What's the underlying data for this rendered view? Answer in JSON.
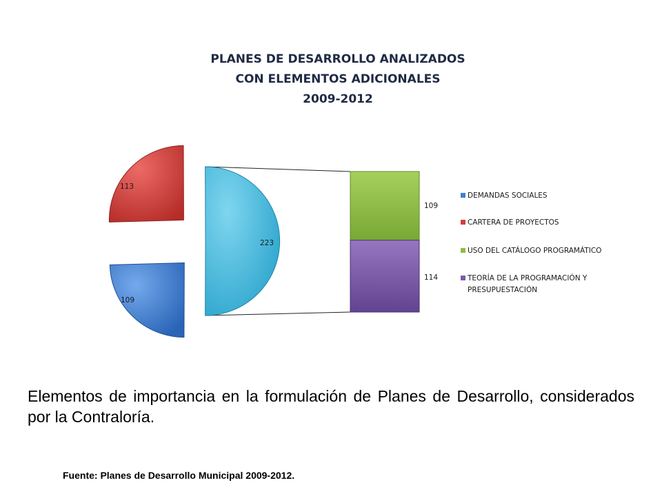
{
  "chart_data": {
    "type": "pie",
    "subtype": "pie-of-pie (stacked bar breakdown)",
    "title_lines": [
      "PLANES DE DESARROLLO ANALIZADOS",
      "CON ELEMENTOS ADICIONALES",
      "2009-2012"
    ],
    "pie": [
      {
        "label": "DEMANDAS SOCIALES",
        "value": 109,
        "color": "#3f7fd0"
      },
      {
        "label": "CARTERA DE PROYECTOS",
        "value": 113,
        "color": "#d23f3a"
      },
      {
        "label": "other (combined)",
        "value": 223,
        "color": "#3cb7dc"
      }
    ],
    "pie_labels": [
      "109",
      "113",
      "223"
    ],
    "breakdown": [
      {
        "label": "USO DEL CATÁLOGO PROGRAMÁTICO",
        "value": 109,
        "color": "#8fbf44"
      },
      {
        "label": "TEORÍA DE LA PROGRAMACIÓN Y PRESUPUESTACIÓN",
        "value": 114,
        "color": "#7d5aa6"
      }
    ],
    "breakdown_labels": [
      "109",
      "114"
    ],
    "legend": [
      {
        "label": "DEMANDAS SOCIALES",
        "color": "#3f7fd0"
      },
      {
        "label": "CARTERA DE PROYECTOS",
        "color": "#d23f3a"
      },
      {
        "label": "USO DEL CATÁLOGO PROGRAMÁTICO",
        "color": "#8fbf44"
      },
      {
        "label_lines": [
          "TEORÍA DE LA PROGRAMACIÓN Y",
          "PRESUPUESTACIÓN"
        ],
        "color": "#7d5aa6"
      }
    ],
    "legend_position": "right"
  },
  "caption": "Elementos de importancia en la formulación de Planes de Desarrollo, considerados por la Contraloría.",
  "source": "Fuente: Planes de Desarrollo Municipal 2009-2012."
}
